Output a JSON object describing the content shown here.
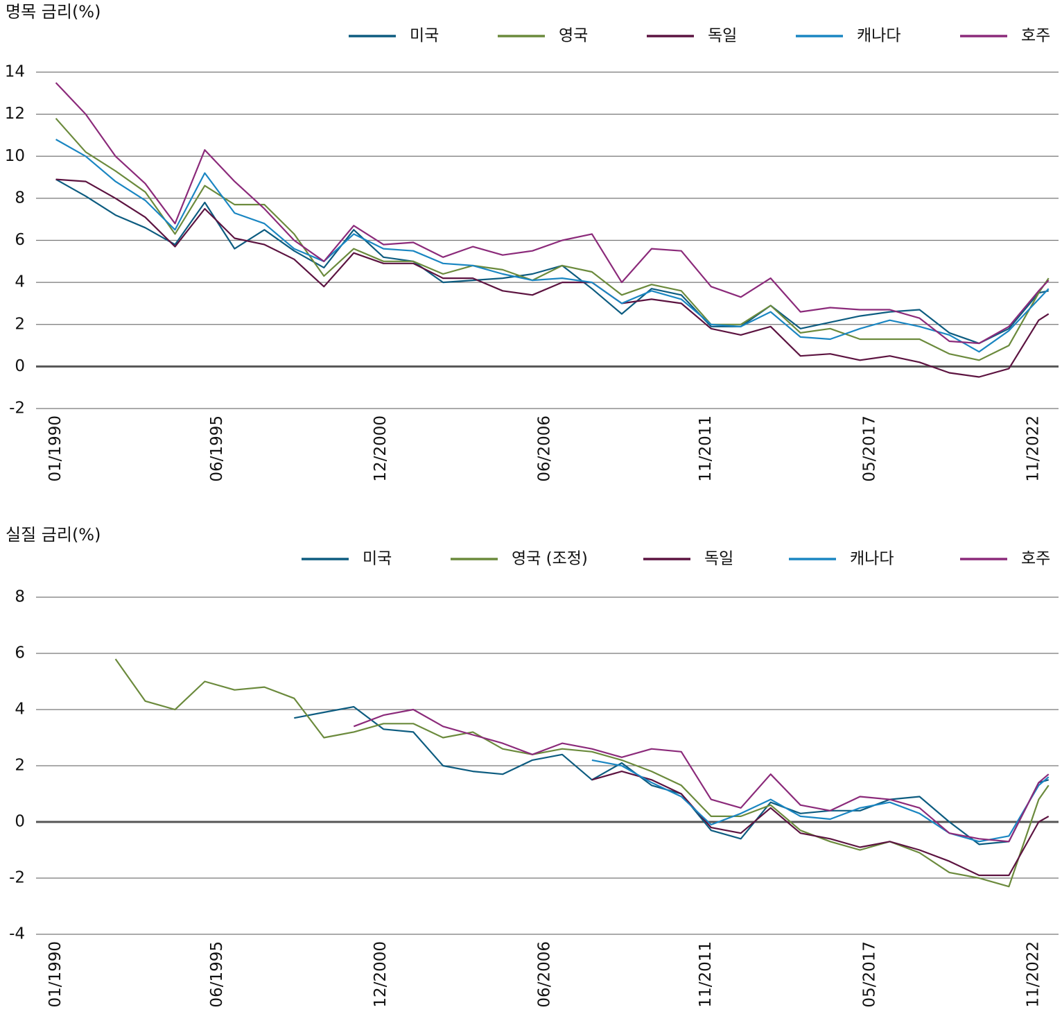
{
  "chart_data": [
    {
      "type": "line",
      "title": "명목 금리(%)",
      "legend": "top-right",
      "grid": true,
      "x": [
        "01/1990",
        "01/1991",
        "01/1992",
        "01/1993",
        "01/1994",
        "01/1995",
        "01/1996",
        "01/1997",
        "01/1998",
        "01/1999",
        "01/2000",
        "01/2001",
        "01/2002",
        "01/2003",
        "01/2004",
        "01/2005",
        "01/2006",
        "01/2007",
        "01/2008",
        "01/2009",
        "01/2010",
        "01/2011",
        "01/2012",
        "01/2013",
        "01/2014",
        "01/2015",
        "01/2016",
        "01/2017",
        "01/2018",
        "01/2019",
        "01/2020",
        "01/2021",
        "01/2022",
        "01/2023",
        "05/2023"
      ],
      "xlim": [
        "05/1989",
        "09/2023"
      ],
      "xticks": [
        "01/1990",
        "06/1995",
        "12/2000",
        "06/2006",
        "11/2011",
        "05/2017",
        "11/2022"
      ],
      "ylim": [
        -2,
        14
      ],
      "yticks": [
        -2,
        0,
        2,
        4,
        6,
        8,
        10,
        12,
        14
      ],
      "series": [
        {
          "name": "미국",
          "color": "#0d5c80",
          "values": [
            8.9,
            8.1,
            7.2,
            6.6,
            5.8,
            7.8,
            5.6,
            6.5,
            5.5,
            4.7,
            6.5,
            5.2,
            5.0,
            4.0,
            4.1,
            4.2,
            4.4,
            4.8,
            3.7,
            2.5,
            3.7,
            3.4,
            1.9,
            1.9,
            2.9,
            1.8,
            2.1,
            2.4,
            2.6,
            2.7,
            1.6,
            1.1,
            1.8,
            3.5,
            3.6
          ]
        },
        {
          "name": "영국",
          "color": "#6b8a3c",
          "values": [
            11.8,
            10.2,
            9.3,
            8.3,
            6.3,
            8.6,
            7.7,
            7.7,
            6.3,
            4.3,
            5.6,
            5.0,
            5.0,
            4.4,
            4.8,
            4.6,
            4.1,
            4.8,
            4.5,
            3.4,
            3.9,
            3.6,
            2.0,
            2.0,
            2.9,
            1.6,
            1.8,
            1.3,
            1.3,
            1.3,
            0.6,
            0.3,
            1.0,
            3.5,
            4.2
          ]
        },
        {
          "name": "독일",
          "color": "#5c1340",
          "values": [
            8.9,
            8.8,
            8.0,
            7.1,
            5.7,
            7.5,
            6.1,
            5.8,
            5.1,
            3.8,
            5.4,
            4.9,
            4.9,
            4.2,
            4.2,
            3.6,
            3.4,
            4.0,
            4.0,
            3.0,
            3.2,
            3.0,
            1.8,
            1.5,
            1.9,
            0.5,
            0.6,
            0.3,
            0.5,
            0.2,
            -0.3,
            -0.5,
            -0.1,
            2.2,
            2.5
          ]
        },
        {
          "name": "캐나다",
          "color": "#1a86c2",
          "values": [
            10.8,
            10.0,
            8.8,
            7.9,
            6.5,
            9.2,
            7.3,
            6.8,
            5.6,
            5.0,
            6.3,
            5.6,
            5.5,
            4.9,
            4.8,
            4.4,
            4.1,
            4.2,
            4.0,
            3.0,
            3.6,
            3.2,
            2.0,
            1.9,
            2.6,
            1.4,
            1.3,
            1.8,
            2.2,
            1.9,
            1.5,
            0.7,
            1.7,
            3.2,
            3.7
          ]
        },
        {
          "name": "호주",
          "color": "#8b2a7a",
          "values": [
            13.5,
            12.0,
            10.0,
            8.7,
            6.8,
            10.3,
            8.8,
            7.5,
            6.0,
            5.0,
            6.7,
            5.8,
            5.9,
            5.2,
            5.7,
            5.3,
            5.5,
            6.0,
            6.3,
            4.0,
            5.6,
            5.5,
            3.8,
            3.3,
            4.2,
            2.6,
            2.8,
            2.7,
            2.7,
            2.3,
            1.2,
            1.1,
            1.9,
            3.6,
            4.1
          ]
        }
      ]
    },
    {
      "type": "line",
      "title": "실질 금리(%)",
      "legend": "top-right",
      "grid": true,
      "x": [
        "01/1990",
        "01/1991",
        "01/1992",
        "01/1993",
        "01/1994",
        "01/1995",
        "01/1996",
        "01/1997",
        "01/1998",
        "01/1999",
        "01/2000",
        "01/2001",
        "01/2002",
        "01/2003",
        "01/2004",
        "01/2005",
        "01/2006",
        "01/2007",
        "01/2008",
        "01/2009",
        "01/2010",
        "01/2011",
        "01/2012",
        "01/2013",
        "01/2014",
        "01/2015",
        "01/2016",
        "01/2017",
        "01/2018",
        "01/2019",
        "01/2020",
        "01/2021",
        "01/2022",
        "01/2023",
        "05/2023"
      ],
      "xlim": [
        "05/1989",
        "09/2023"
      ],
      "xticks": [
        "01/1990",
        "06/1995",
        "12/2000",
        "06/2006",
        "11/2011",
        "05/2017",
        "11/2022"
      ],
      "ylim": [
        -4,
        8
      ],
      "yticks": [
        -4,
        -2,
        0,
        2,
        4,
        6,
        8
      ],
      "series": [
        {
          "name": "미국",
          "color": "#0d5c80",
          "values": [
            null,
            null,
            null,
            null,
            null,
            null,
            null,
            null,
            3.7,
            3.9,
            4.1,
            3.3,
            3.2,
            2.0,
            1.8,
            1.7,
            2.2,
            2.4,
            1.5,
            2.1,
            1.3,
            1.0,
            -0.3,
            -0.6,
            0.7,
            0.3,
            0.4,
            0.4,
            0.8,
            0.9,
            0.0,
            -0.8,
            -0.7,
            1.4,
            1.5
          ]
        },
        {
          "name": "영국 (조정)",
          "color": "#6b8a3c",
          "values": [
            null,
            null,
            5.8,
            4.3,
            4.0,
            5.0,
            4.7,
            4.8,
            4.4,
            3.0,
            3.2,
            3.5,
            3.5,
            3.0,
            3.2,
            2.6,
            2.4,
            2.6,
            2.5,
            2.2,
            1.8,
            1.3,
            0.2,
            0.2,
            0.6,
            -0.3,
            -0.7,
            -1.0,
            -0.7,
            -1.1,
            -1.8,
            -2.0,
            -2.3,
            0.8,
            1.3
          ]
        },
        {
          "name": "독일",
          "color": "#5c1340",
          "values": [
            null,
            null,
            null,
            null,
            null,
            null,
            null,
            null,
            null,
            null,
            null,
            null,
            null,
            null,
            null,
            null,
            null,
            null,
            1.5,
            1.8,
            1.5,
            1.0,
            -0.2,
            -0.4,
            0.5,
            -0.4,
            -0.6,
            -0.9,
            -0.7,
            -1.0,
            -1.4,
            -1.9,
            -1.9,
            0.0,
            0.2
          ]
        },
        {
          "name": "캐나다",
          "color": "#1a86c2",
          "values": [
            null,
            null,
            null,
            null,
            null,
            null,
            null,
            null,
            null,
            null,
            null,
            null,
            null,
            null,
            null,
            null,
            null,
            null,
            2.2,
            2.0,
            1.4,
            0.9,
            -0.1,
            0.3,
            0.8,
            0.2,
            0.1,
            0.5,
            0.7,
            0.3,
            -0.4,
            -0.7,
            -0.5,
            1.3,
            1.6
          ]
        },
        {
          "name": "호주",
          "color": "#8b2a7a",
          "values": [
            null,
            null,
            null,
            null,
            null,
            null,
            null,
            null,
            null,
            null,
            3.4,
            3.8,
            4.0,
            3.4,
            3.1,
            2.8,
            2.4,
            2.8,
            2.6,
            2.3,
            2.6,
            2.5,
            0.8,
            0.5,
            1.7,
            0.6,
            0.4,
            0.9,
            0.8,
            0.5,
            -0.4,
            -0.6,
            -0.7,
            1.4,
            1.7
          ]
        }
      ]
    }
  ]
}
